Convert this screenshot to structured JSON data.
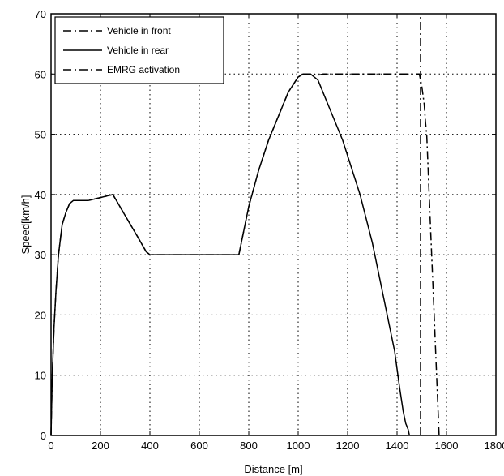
{
  "chart_data": {
    "type": "line",
    "title": "",
    "xlabel": "Distance [m]",
    "ylabel": "Speed[km/h]",
    "xlim": [
      0,
      1800
    ],
    "ylim": [
      0,
      70
    ],
    "xticks": [
      0,
      200,
      400,
      600,
      800,
      1000,
      1200,
      1400,
      1600,
      1800
    ],
    "yticks": [
      0,
      10,
      20,
      30,
      40,
      50,
      60,
      70
    ],
    "grid": true,
    "legend": "top-left",
    "series": [
      {
        "name": "Vehicle in front",
        "style": "dash-dot",
        "x": [
          0,
          5,
          12,
          20,
          30,
          45,
          60,
          75,
          90,
          110,
          150,
          200,
          250,
          300,
          350,
          385,
          400,
          600,
          760,
          780,
          800,
          840,
          880,
          920,
          960,
          1000,
          1020,
          1050,
          1080,
          1100,
          1200,
          1300,
          1400,
          1480,
          1490,
          1500,
          1510,
          1515,
          1520,
          1530,
          1540,
          1550,
          1560,
          1570
        ],
        "y": [
          0,
          10,
          18,
          24,
          30,
          35,
          37,
          38.5,
          39,
          39,
          39,
          39.5,
          40,
          36.5,
          33,
          30.5,
          30,
          30,
          30,
          34,
          38,
          44,
          49,
          53,
          57,
          59.5,
          60,
          60,
          59.8,
          60,
          60,
          60,
          60,
          60,
          60,
          58,
          55,
          52,
          50,
          40,
          30,
          20,
          10,
          0
        ]
      },
      {
        "name": "Vehicle in rear",
        "style": "solid",
        "x": [
          0,
          5,
          12,
          20,
          30,
          45,
          60,
          75,
          90,
          110,
          150,
          200,
          250,
          300,
          350,
          385,
          400,
          600,
          760,
          780,
          800,
          840,
          880,
          920,
          960,
          1000,
          1020,
          1050,
          1080,
          1120,
          1180,
          1250,
          1300,
          1350,
          1390,
          1410,
          1425,
          1435,
          1445,
          1450
        ],
        "y": [
          0,
          10,
          18,
          24,
          30,
          35,
          37,
          38.5,
          39,
          39,
          39,
          39.5,
          40,
          36.5,
          33,
          30.5,
          30,
          30,
          30,
          34,
          38,
          44,
          49,
          53,
          57,
          59.5,
          60,
          60,
          59,
          55,
          49,
          40,
          32,
          22,
          14,
          8,
          4,
          2,
          1,
          0
        ]
      },
      {
        "name": "EMRG activation",
        "style": "dash-dot",
        "x": [
          1495,
          1495
        ],
        "y": [
          0,
          70
        ]
      }
    ]
  }
}
